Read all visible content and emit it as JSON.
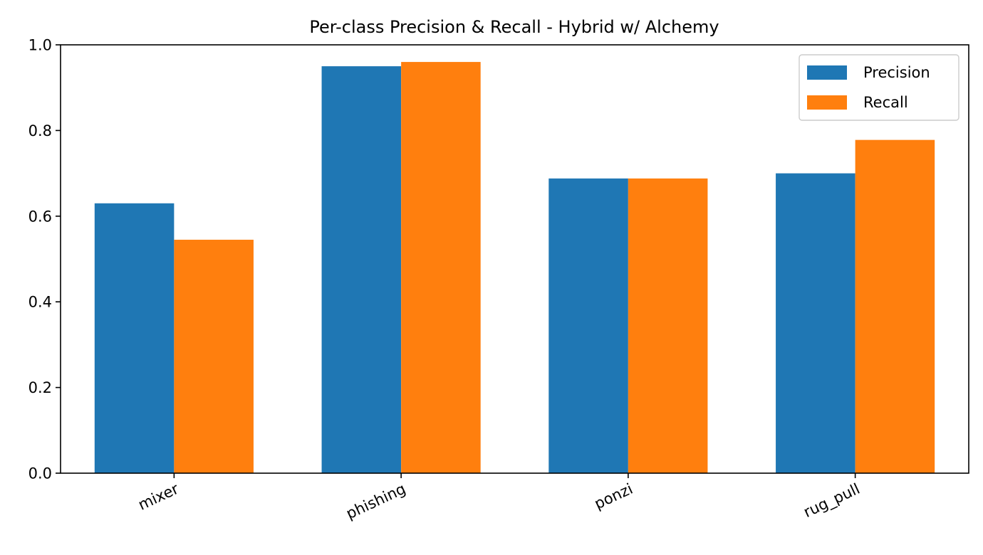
{
  "chart_data": {
    "type": "bar",
    "title": "Per-class Precision & Recall - Hybrid w/ Alchemy",
    "xlabel": "",
    "ylabel": "",
    "categories": [
      "mixer",
      "phishing",
      "ponzi",
      "rug_pull"
    ],
    "series": [
      {
        "name": "Precision",
        "color": "#1f77b4",
        "values": [
          0.63,
          0.95,
          0.688,
          0.7
        ]
      },
      {
        "name": "Recall",
        "color": "#ff7f0e",
        "values": [
          0.545,
          0.96,
          0.688,
          0.778
        ]
      }
    ],
    "ylim": [
      0.0,
      1.0
    ],
    "yticks": [
      "0.0",
      "0.2",
      "0.4",
      "0.6",
      "0.8",
      "1.0"
    ],
    "xtick_rotation": 25,
    "grid": false,
    "legend_position": "top-right"
  }
}
